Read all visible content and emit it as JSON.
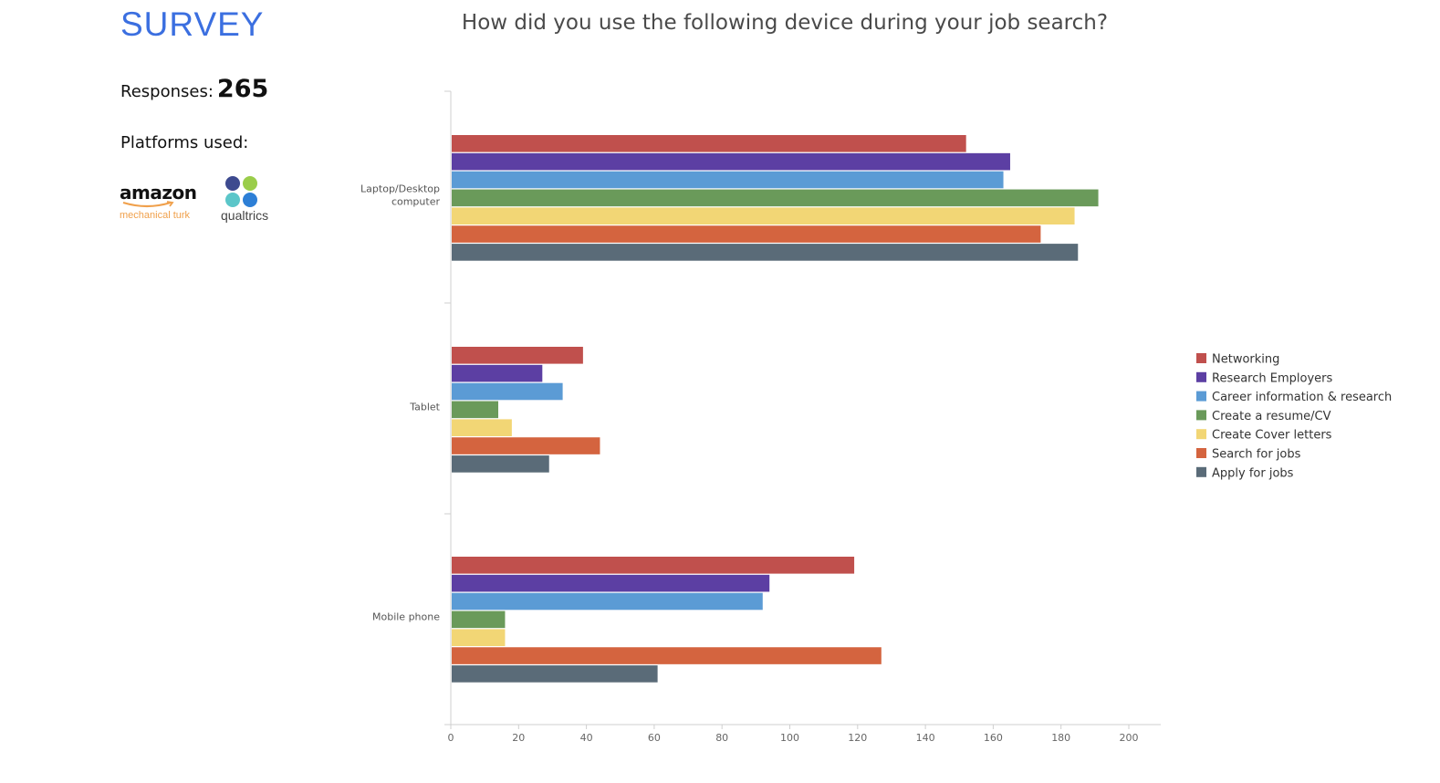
{
  "sidebar": {
    "title": "SURVEY",
    "responses_label": "Responses:",
    "responses_count": "265",
    "platforms_label": "Platforms used:",
    "platforms": [
      {
        "name": "amazon",
        "subtitle": "mechanical turk",
        "icon": "amazon-smile-icon"
      },
      {
        "name": "qualtrics",
        "icon": "qualtrics-dots-icon"
      }
    ]
  },
  "colors": {
    "title_blue": "#3b6fe0",
    "amazon_orange": "#f0a04b"
  },
  "chart_data": {
    "type": "bar",
    "orientation": "horizontal",
    "title": "How did you use the following device during your job search?",
    "categories": [
      "Laptop/Desktop computer",
      "Tablet",
      "Mobile phone"
    ],
    "category_lines": [
      [
        "Laptop/Desktop",
        "computer"
      ],
      [
        "Tablet"
      ],
      [
        "Mobile phone"
      ]
    ],
    "series": [
      {
        "name": "Networking",
        "color": "#c0504d",
        "values": [
          152,
          39,
          119
        ]
      },
      {
        "name": "Research Employers",
        "color": "#5c3fa3",
        "values": [
          165,
          27,
          94
        ]
      },
      {
        "name": "Career information & research",
        "color": "#5b9bd5",
        "values": [
          163,
          33,
          92
        ]
      },
      {
        "name": "Create a resume/CV",
        "color": "#6a9a5a",
        "values": [
          191,
          14,
          16
        ]
      },
      {
        "name": "Create Cover letters",
        "color": "#f2d675",
        "values": [
          184,
          18,
          16
        ]
      },
      {
        "name": "Search for jobs",
        "color": "#d4643f",
        "values": [
          174,
          44,
          127
        ]
      },
      {
        "name": "Apply for jobs",
        "color": "#5a6b78",
        "values": [
          185,
          29,
          61
        ]
      }
    ],
    "xlim": [
      0,
      210
    ],
    "xticks": [
      0,
      20,
      40,
      60,
      80,
      100,
      120,
      140,
      160,
      180,
      200
    ],
    "xlabel": "",
    "ylabel": "",
    "legend_position": "right",
    "grid": false
  }
}
